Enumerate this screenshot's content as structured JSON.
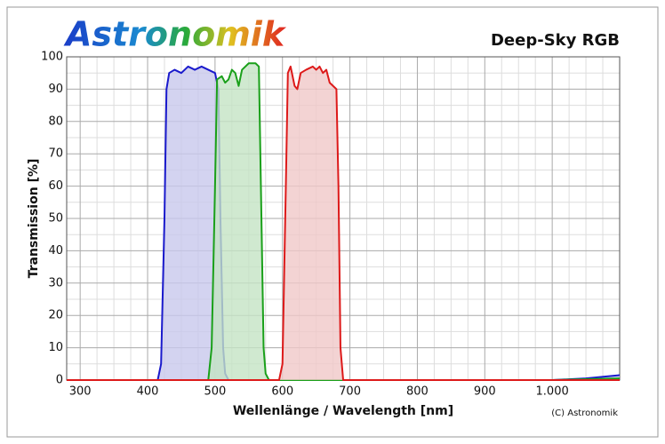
{
  "logo": "Astronomik",
  "chart_data": {
    "type": "line",
    "title": "Deep-Sky RGB",
    "xlabel": "Wellenlänge / Wavelength [nm]",
    "ylabel": "Transmission [%]",
    "credit": "(C) Astronomik",
    "xlim": [
      280,
      1100
    ],
    "ylim": [
      0,
      100
    ],
    "xticks": [
      300,
      400,
      500,
      600,
      700,
      800,
      900,
      {
        "value": 1000,
        "label": "1.000"
      }
    ],
    "yticks": [
      0,
      10,
      20,
      30,
      40,
      50,
      60,
      70,
      80,
      90,
      100
    ],
    "grid": true,
    "minor_grid_divisions": {
      "x": 4,
      "y": 2
    },
    "fill_area": true,
    "series": [
      {
        "name": "Blue",
        "color": "#1a1acc",
        "fill": "#c8c8ec",
        "x": [
          280,
          415,
          420,
          425,
          428,
          432,
          440,
          450,
          460,
          470,
          480,
          490,
          500,
          505,
          508,
          512,
          515,
          520,
          1000,
          1050,
          1100
        ],
        "values": [
          0,
          0,
          5,
          50,
          90,
          95,
          96,
          95,
          97,
          96,
          97,
          96,
          95,
          90,
          50,
          10,
          2,
          0,
          0,
          0.5,
          1.5
        ]
      },
      {
        "name": "Green",
        "color": "#1aa01a",
        "fill": "#c4e4c4",
        "x": [
          280,
          490,
          495,
          500,
          503,
          510,
          515,
          520,
          525,
          530,
          535,
          540,
          550,
          560,
          565,
          568,
          572,
          575,
          580,
          1000,
          1100
        ],
        "values": [
          0,
          0,
          10,
          60,
          93,
          94,
          92,
          93,
          96,
          95,
          91,
          96,
          98,
          98,
          97,
          60,
          10,
          2,
          0,
          0,
          0.5
        ]
      },
      {
        "name": "Red",
        "color": "#dd1a1a",
        "fill": "#f0c8c8",
        "x": [
          280,
          595,
          600,
          605,
          608,
          612,
          618,
          622,
          627,
          635,
          645,
          650,
          655,
          660,
          665,
          670,
          675,
          680,
          683,
          686,
          690,
          1100
        ],
        "values": [
          0,
          0,
          5,
          60,
          95,
          97,
          91,
          90,
          95,
          96,
          97,
          96,
          97,
          95,
          96,
          92,
          91,
          90,
          60,
          10,
          0,
          0
        ]
      }
    ]
  }
}
